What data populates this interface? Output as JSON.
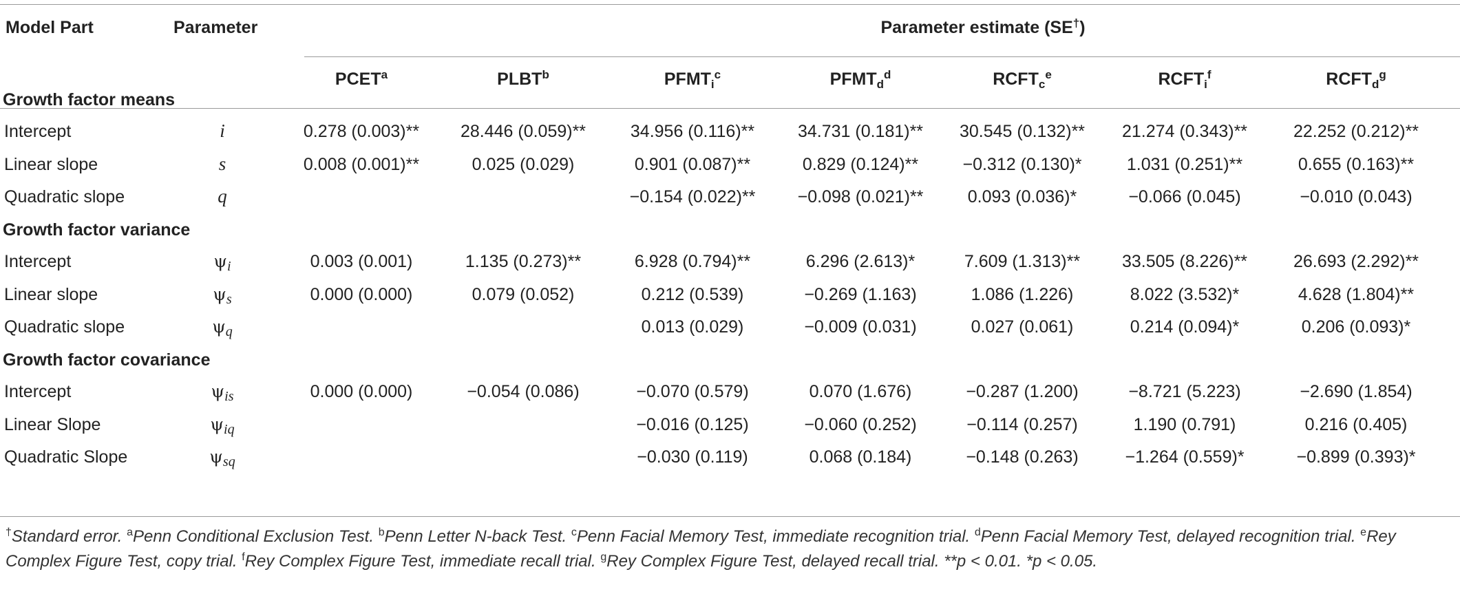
{
  "header": {
    "model_part": "Model Part",
    "parameter": "Parameter",
    "estimate_title": "Parameter estimate (SE",
    "estimate_title_mark": "†",
    "estimate_title_close": ")",
    "columns": [
      {
        "base": "PCET",
        "sub": "",
        "sup": "a"
      },
      {
        "base": "PLBT",
        "sub": "",
        "sup": "b"
      },
      {
        "base": "PFMT",
        "sub": "i",
        "sup": "c"
      },
      {
        "base": "PFMT",
        "sub": "d",
        "sup": "d"
      },
      {
        "base": "RCFT",
        "sub": "c",
        "sup": "e"
      },
      {
        "base": "RCFT",
        "sub": "i",
        "sup": "f"
      },
      {
        "base": "RCFT",
        "sub": "d",
        "sup": "g"
      }
    ]
  },
  "sections": [
    {
      "title": "Growth factor means",
      "rows": [
        {
          "part": "Intercept",
          "param": "i",
          "param_sub": "",
          "values": [
            "0.278 (0.003)**",
            "28.446 (0.059)**",
            "34.956 (0.116)**",
            "34.731 (0.181)**",
            "30.545 (0.132)**",
            "21.274 (0.343)**",
            "22.252 (0.212)**"
          ]
        },
        {
          "part": "Linear slope",
          "param": "s",
          "param_sub": "",
          "values": [
            "0.008 (0.001)**",
            "0.025 (0.029)",
            "0.901 (0.087)**",
            "0.829 (0.124)**",
            "−0.312 (0.130)*",
            "1.031 (0.251)**",
            "0.655 (0.163)**"
          ]
        },
        {
          "part": "Quadratic slope",
          "param": "q",
          "param_sub": "",
          "values": [
            "",
            "",
            "−0.154 (0.022)**",
            "−0.098 (0.021)**",
            "0.093 (0.036)*",
            "−0.066 (0.045)",
            "−0.010 (0.043)"
          ]
        }
      ]
    },
    {
      "title": "Growth factor variance",
      "rows": [
        {
          "part": "Intercept",
          "param": "ψ",
          "param_sub": "i",
          "values": [
            "0.003 (0.001)",
            "1.135 (0.273)**",
            "6.928 (0.794)**",
            "6.296 (2.613)*",
            "7.609 (1.313)**",
            "33.505 (8.226)**",
            "26.693 (2.292)**"
          ]
        },
        {
          "part": "Linear slope",
          "param": "ψ",
          "param_sub": "s",
          "values": [
            "0.000 (0.000)",
            "0.079 (0.052)",
            "0.212 (0.539)",
            "−0.269 (1.163)",
            "1.086 (1.226)",
            "8.022 (3.532)*",
            "4.628 (1.804)**"
          ]
        },
        {
          "part": "Quadratic slope",
          "param": "ψ",
          "param_sub": "q",
          "values": [
            "",
            "",
            "0.013 (0.029)",
            "−0.009 (0.031)",
            "0.027 (0.061)",
            "0.214 (0.094)*",
            "0.206 (0.093)*"
          ]
        }
      ]
    },
    {
      "title": "Growth factor covariance",
      "rows": [
        {
          "part": "Intercept",
          "param": "ψ",
          "param_sub": "is",
          "values": [
            "0.000 (0.000)",
            "−0.054 (0.086)",
            "−0.070 (0.579)",
            "0.070 (1.676)",
            "−0.287 (1.200)",
            "−8.721 (5.223)",
            "−2.690 (1.854)"
          ]
        },
        {
          "part": "Linear Slope",
          "param": "ψ",
          "param_sub": "iq",
          "values": [
            "",
            "",
            "−0.016 (0.125)",
            "−0.060 (0.252)",
            "−0.114 (0.257)",
            "1.190 (0.791)",
            "0.216 (0.405)"
          ]
        },
        {
          "part": "Quadratic Slope",
          "param": "ψ",
          "param_sub": "sq",
          "values": [
            "",
            "",
            "−0.030 (0.119)",
            "0.068 (0.184)",
            "−0.148 (0.263)",
            "−1.264 (0.559)*",
            "−0.899 (0.393)*"
          ]
        }
      ]
    }
  ],
  "footnotes": [
    {
      "mark": "†",
      "text": "Standard error. "
    },
    {
      "mark": "a",
      "text": "Penn Conditional Exclusion Test. "
    },
    {
      "mark": "b",
      "text": "Penn Letter N-back Test. "
    },
    {
      "mark": "c",
      "text": "Penn Facial Memory Test, immediate recognition trial. "
    },
    {
      "mark": "d",
      "text": "Penn Facial Memory Test, delayed recognition trial. "
    },
    {
      "mark": "e",
      "text": "Rey Complex Figure Test, copy trial. "
    },
    {
      "mark": "f",
      "text": "Rey Complex Figure Test, immediate recall trial. "
    },
    {
      "mark": "g",
      "text": "Rey Complex Figure Test, delayed recall trial. **p < 0.01. *p < 0.05."
    }
  ]
}
